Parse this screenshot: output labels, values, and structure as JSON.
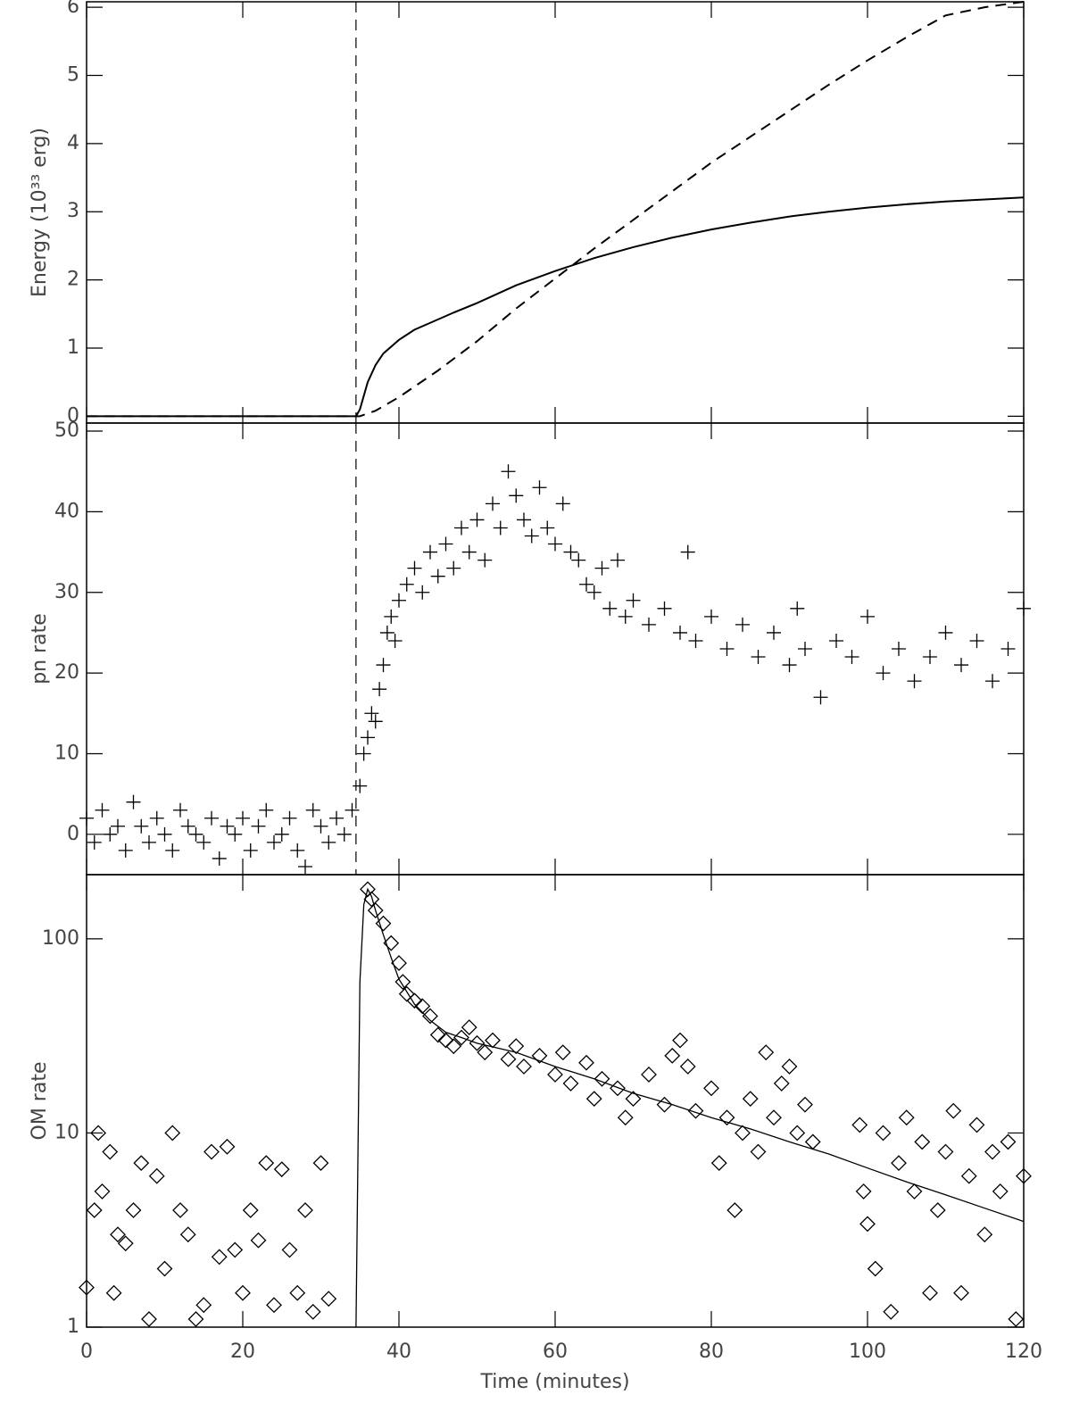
{
  "chart_data": [
    {
      "type": "line",
      "ylabel": "Energy (10³³ erg)",
      "xlim": [
        0,
        120
      ],
      "xticks": [
        0,
        20,
        40,
        60,
        80,
        100,
        120
      ],
      "xtick_labels": false,
      "ylim": [
        -0.1,
        6.08
      ],
      "yticks": [
        0,
        1,
        2,
        3,
        4,
        5,
        6
      ],
      "vline": 34.5,
      "series": [
        {
          "style": "solid",
          "color": "#000000",
          "x": [
            0,
            34.5,
            35,
            35.5,
            36,
            37,
            38,
            40,
            42,
            44,
            47,
            50,
            55,
            60,
            65,
            70,
            75,
            80,
            85,
            90,
            95,
            100,
            105,
            110,
            115,
            120
          ],
          "values": [
            0,
            0,
            0.1,
            0.3,
            0.5,
            0.75,
            0.92,
            1.12,
            1.27,
            1.37,
            1.52,
            1.66,
            1.92,
            2.13,
            2.32,
            2.48,
            2.62,
            2.74,
            2.84,
            2.93,
            3.0,
            3.06,
            3.11,
            3.15,
            3.18,
            3.21
          ]
        },
        {
          "style": "dashed",
          "color": "#000000",
          "x": [
            0,
            35,
            37,
            40,
            45,
            50,
            55,
            60,
            65,
            70,
            75,
            80,
            85,
            90,
            95,
            100,
            105,
            110,
            115,
            120
          ],
          "values": [
            0,
            0,
            0.08,
            0.28,
            0.67,
            1.1,
            1.58,
            2.02,
            2.46,
            2.88,
            3.3,
            3.72,
            4.1,
            4.48,
            4.86,
            5.22,
            5.56,
            5.88,
            6.0,
            6.08
          ]
        }
      ]
    },
    {
      "type": "scatter",
      "ylabel": "pn rate",
      "xlim": [
        0,
        120
      ],
      "xticks": [
        0,
        20,
        40,
        60,
        80,
        100,
        120
      ],
      "xtick_labels": false,
      "ylim": [
        -5,
        51
      ],
      "yticks": [
        0,
        10,
        20,
        30,
        40,
        50
      ],
      "vline": 34.5,
      "series": [
        {
          "marker": "plus",
          "color": "#000000",
          "x": [
            0,
            1,
            2,
            3,
            4,
            5,
            6,
            7,
            8,
            9,
            10,
            11,
            12,
            13,
            14,
            15,
            16,
            17,
            18,
            19,
            20,
            21,
            22,
            23,
            24,
            25,
            26,
            27,
            28,
            29,
            30,
            31,
            32,
            33,
            34,
            35,
            35.5,
            36,
            36.5,
            37,
            37.5,
            38,
            38.5,
            39,
            39.5,
            40,
            41,
            42,
            43,
            44,
            45,
            46,
            47,
            48,
            49,
            50,
            51,
            52,
            53,
            54,
            55,
            56,
            57,
            58,
            59,
            60,
            61,
            62,
            63,
            64,
            65,
            66,
            67,
            68,
            69,
            70,
            72,
            74,
            76,
            77,
            78,
            80,
            82,
            84,
            86,
            88,
            90,
            91,
            92,
            94,
            96,
            98,
            100,
            102,
            104,
            106,
            108,
            110,
            112,
            114,
            116,
            118,
            120
          ],
          "values": [
            2,
            -1,
            3,
            0,
            1,
            -2,
            4,
            1,
            -1,
            2,
            0,
            -2,
            3,
            1,
            0,
            -1,
            2,
            -3,
            1,
            0,
            2,
            -2,
            1,
            3,
            -1,
            0,
            2,
            -2,
            -4,
            3,
            1,
            -1,
            2,
            0,
            3,
            6,
            10,
            12,
            15,
            14,
            18,
            21,
            25,
            27,
            24,
            29,
            31,
            33,
            30,
            35,
            32,
            36,
            33,
            38,
            35,
            39,
            34,
            41,
            38,
            45,
            42,
            39,
            37,
            43,
            38,
            36,
            41,
            35,
            34,
            31,
            30,
            33,
            28,
            34,
            27,
            29,
            26,
            28,
            25,
            35,
            24,
            27,
            23,
            26,
            22,
            25,
            21,
            28,
            23,
            17,
            24,
            22,
            27,
            20,
            23,
            19,
            22,
            25,
            21,
            24,
            19,
            23,
            28
          ]
        }
      ]
    },
    {
      "type": "scatter",
      "ylabel": "OM rate",
      "xlabel": "Time (minutes)",
      "ylog": true,
      "xlim": [
        0,
        120
      ],
      "xticks": [
        0,
        20,
        40,
        60,
        80,
        100,
        120
      ],
      "xtick_labels": true,
      "ylim": [
        1,
        214
      ],
      "yticks": [
        1,
        10,
        100
      ],
      "series": [
        {
          "marker": "diamond",
          "color": "#000000",
          "x": [
            0,
            1,
            1.5,
            2,
            3,
            3.5,
            4,
            5,
            6,
            7,
            8,
            9,
            10,
            11,
            12,
            13,
            14,
            15,
            16,
            17,
            18,
            19,
            20,
            21,
            22,
            23,
            24,
            25,
            26,
            27,
            28,
            29,
            30,
            31,
            36,
            36.5,
            37,
            38,
            39,
            40,
            40.5,
            41,
            42,
            43,
            44,
            45,
            46,
            47,
            48,
            49,
            50,
            51,
            52,
            54,
            55,
            56,
            58,
            60,
            61,
            62,
            64,
            65,
            66,
            68,
            69,
            70,
            72,
            74,
            75,
            76,
            77,
            78,
            80,
            81,
            82,
            83,
            84,
            85,
            86,
            87,
            88,
            89,
            90,
            91,
            92,
            93,
            99,
            99.5,
            100,
            101,
            102,
            103,
            104,
            105,
            106,
            107,
            108,
            109,
            110,
            111,
            112,
            113,
            114,
            115,
            116,
            117,
            118,
            119,
            120
          ],
          "values": [
            1.6,
            4,
            10,
            5,
            8,
            1.5,
            3,
            2.7,
            4,
            7,
            1.1,
            6,
            2,
            10,
            4,
            3,
            1.1,
            1.3,
            8,
            2.3,
            8.5,
            2.5,
            1.5,
            4,
            2.8,
            7,
            1.3,
            6.5,
            2.5,
            1.5,
            4,
            1.2,
            7,
            1.4,
            180,
            160,
            140,
            120,
            95,
            75,
            60,
            52,
            48,
            45,
            40,
            32,
            30,
            28,
            31,
            35,
            29,
            26,
            30,
            24,
            28,
            22,
            25,
            20,
            26,
            18,
            23,
            15,
            19,
            17,
            12,
            15,
            20,
            14,
            25,
            30,
            22,
            13,
            17,
            7,
            12,
            4,
            10,
            15,
            8,
            26,
            12,
            18,
            22,
            10,
            14,
            9,
            11,
            5,
            3.4,
            2,
            10,
            1.2,
            7,
            12,
            5,
            9,
            1.5,
            4,
            8,
            13,
            1.5,
            6,
            11,
            3,
            8,
            5,
            9,
            1.1,
            6
          ]
        },
        {
          "style": "solid",
          "color": "#000000",
          "x": [
            34.5,
            35,
            35.5,
            36,
            36.5,
            37,
            38,
            39,
            40,
            42,
            44,
            46,
            48,
            50,
            55,
            60,
            65,
            70,
            75,
            80,
            85,
            90,
            95,
            100,
            105,
            110,
            115,
            120
          ],
          "values": [
            1,
            60,
            150,
            180,
            165,
            140,
            105,
            80,
            62,
            46,
            38,
            33,
            31,
            29,
            26,
            22,
            19,
            16,
            14,
            12,
            10.5,
            9,
            7.8,
            6.6,
            5.6,
            4.8,
            4.1,
            3.5
          ]
        }
      ]
    }
  ]
}
